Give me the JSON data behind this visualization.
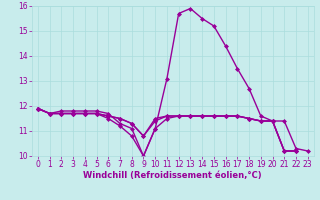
{
  "background_color": "#c8ecec",
  "line_color": "#990099",
  "marker": "D",
  "markersize": 2,
  "linewidth": 1.0,
  "xlabel": "Windchill (Refroidissement éolien,°C)",
  "xlabel_fontsize": 6,
  "tick_fontsize": 5.5,
  "xlim": [
    -0.5,
    23.5
  ],
  "ylim": [
    10,
    16
  ],
  "xticks": [
    0,
    1,
    2,
    3,
    4,
    5,
    6,
    7,
    8,
    9,
    10,
    11,
    12,
    13,
    14,
    15,
    16,
    17,
    18,
    19,
    20,
    21,
    22,
    23
  ],
  "yticks": [
    10,
    11,
    12,
    13,
    14,
    15,
    16
  ],
  "grid_color": "#aadddd",
  "series": [
    [
      11.9,
      11.7,
      11.8,
      11.8,
      11.8,
      11.8,
      11.7,
      11.3,
      11.1,
      10.0,
      11.1,
      11.5,
      11.6,
      11.6,
      11.6,
      11.6,
      11.6,
      11.6,
      11.5,
      11.4,
      11.4,
      10.2,
      10.2
    ],
    [
      11.9,
      11.7,
      11.7,
      11.7,
      11.7,
      11.7,
      11.5,
      11.2,
      10.8,
      10.0,
      11.1,
      13.1,
      15.7,
      15.9,
      15.5,
      15.2,
      14.4,
      13.5,
      12.7,
      11.6,
      11.4,
      11.4,
      10.3,
      10.2
    ],
    [
      11.9,
      11.7,
      11.7,
      11.7,
      11.7,
      11.7,
      11.6,
      11.5,
      11.3,
      10.8,
      11.5,
      11.6,
      11.6,
      11.6,
      11.6,
      11.6,
      11.6,
      11.6,
      11.5,
      11.4,
      11.4,
      10.2,
      10.2
    ],
    [
      11.9,
      11.7,
      11.7,
      11.7,
      11.7,
      11.7,
      11.6,
      11.5,
      11.3,
      10.8,
      11.4,
      11.6,
      11.6,
      11.6,
      11.6,
      11.6,
      11.6,
      11.6,
      11.5,
      11.4,
      11.4,
      10.2,
      10.2
    ]
  ],
  "series_x": [
    [
      0,
      1,
      2,
      3,
      4,
      5,
      6,
      7,
      8,
      9,
      10,
      11,
      12,
      13,
      14,
      15,
      16,
      17,
      18,
      19,
      20,
      21,
      22
    ],
    [
      0,
      1,
      2,
      3,
      4,
      5,
      6,
      7,
      8,
      9,
      10,
      11,
      12,
      13,
      14,
      15,
      16,
      17,
      18,
      19,
      20,
      21,
      22,
      23
    ],
    [
      0,
      1,
      2,
      3,
      4,
      5,
      6,
      7,
      8,
      9,
      10,
      11,
      12,
      13,
      14,
      15,
      16,
      17,
      18,
      19,
      20,
      21,
      22
    ],
    [
      0,
      1,
      2,
      3,
      4,
      5,
      6,
      7,
      8,
      9,
      10,
      11,
      12,
      13,
      14,
      15,
      16,
      17,
      18,
      19,
      20,
      21,
      22
    ]
  ]
}
